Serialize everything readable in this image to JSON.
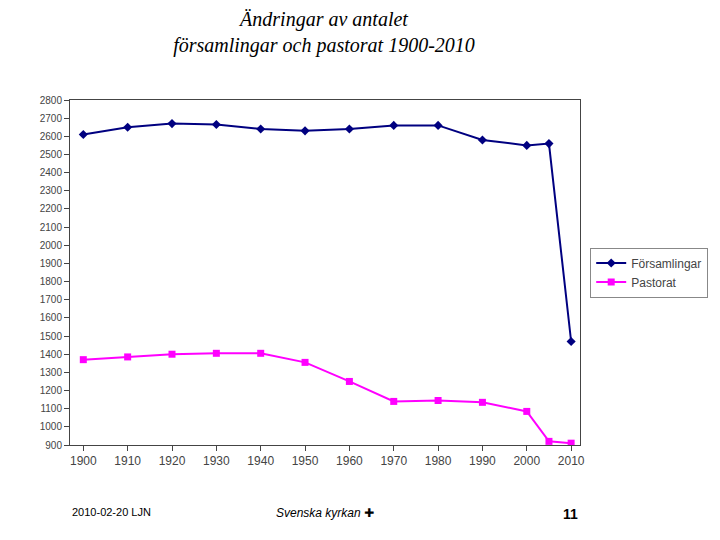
{
  "chart_data": {
    "type": "line",
    "title": "Ändringar av antalet\nförsamlingar och pastorat 1900‑2010",
    "x": [
      1900,
      1910,
      1920,
      1930,
      1940,
      1950,
      1960,
      1970,
      1980,
      1990,
      2000,
      2005,
      2010
    ],
    "series": [
      {
        "name": "Församlingar",
        "color": "#000080",
        "marker": "diamond",
        "line_style": "solid",
        "values": [
          2610,
          2650,
          2670,
          2665,
          2640,
          2630,
          2640,
          2660,
          2660,
          2580,
          2550,
          2560,
          1470
        ]
      },
      {
        "name": "Pastorat",
        "color": "#FF00FF",
        "marker": "square",
        "line_style": "solid",
        "values": [
          1370,
          1385,
          1400,
          1405,
          1405,
          1355,
          1250,
          1140,
          1145,
          1135,
          1085,
          920,
          910
        ]
      }
    ],
    "xlim": [
      1897,
      2012
    ],
    "xticks": [
      1900,
      1910,
      1920,
      1930,
      1940,
      1950,
      1960,
      1970,
      1980,
      1990,
      2000,
      2010
    ],
    "ylim": [
      900,
      2800
    ],
    "yticks": [
      900,
      1000,
      1100,
      1200,
      1300,
      1400,
      1500,
      1600,
      1700,
      1800,
      1900,
      2000,
      2100,
      2200,
      2300,
      2400,
      2500,
      2600,
      2700,
      2800
    ],
    "grid": false,
    "legend": "right",
    "annotations": [
      "2010-02-20 LJN",
      "Svenska kyrkan ✚",
      "11"
    ]
  }
}
